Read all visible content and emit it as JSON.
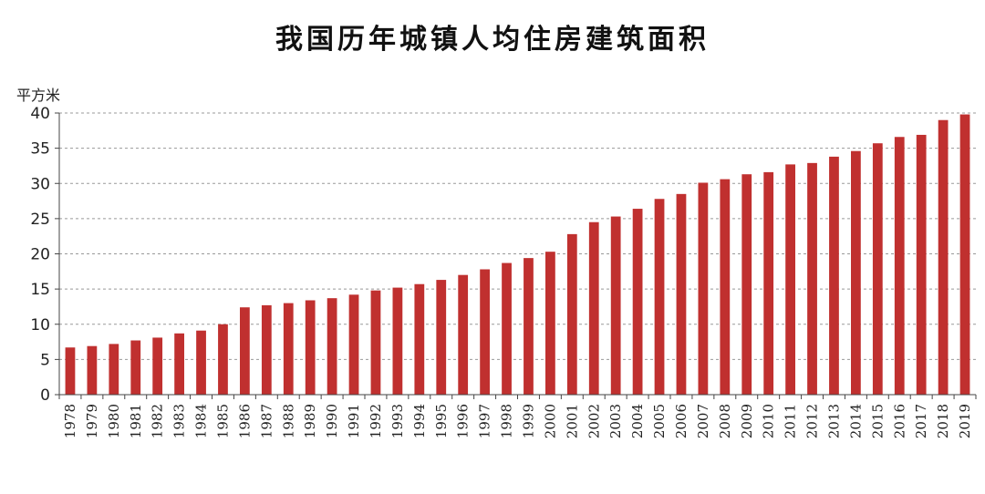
{
  "chart_data": {
    "type": "bar",
    "title": "我国历年城镇人均住房建筑面积",
    "ylabel": "平方米",
    "xlabel": "",
    "ylim": [
      0,
      40
    ],
    "yticks": [
      0,
      5,
      10,
      15,
      20,
      25,
      30,
      35,
      40
    ],
    "grid": true,
    "bar_color": "#c0302f",
    "categories": [
      "1978",
      "1979",
      "1980",
      "1981",
      "1982",
      "1983",
      "1984",
      "1985",
      "1986",
      "1987",
      "1988",
      "1989",
      "1990",
      "1991",
      "1992",
      "1993",
      "1994",
      "1995",
      "1996",
      "1997",
      "1998",
      "1999",
      "2000",
      "2001",
      "2002",
      "2003",
      "2004",
      "2005",
      "2006",
      "2007",
      "2008",
      "2009",
      "2010",
      "2011",
      "2012",
      "2013",
      "2014",
      "2015",
      "2016",
      "2017",
      "2018",
      "2019"
    ],
    "values": [
      6.7,
      6.9,
      7.2,
      7.7,
      8.1,
      8.7,
      9.1,
      10.0,
      12.4,
      12.7,
      13.0,
      13.4,
      13.7,
      14.2,
      14.8,
      15.2,
      15.7,
      16.3,
      17.0,
      17.8,
      18.7,
      19.4,
      20.3,
      22.8,
      24.5,
      25.3,
      26.4,
      27.8,
      28.5,
      30.1,
      30.6,
      31.3,
      31.6,
      32.7,
      32.9,
      33.8,
      34.6,
      35.7,
      36.6,
      36.9,
      39.0,
      39.8
    ]
  }
}
